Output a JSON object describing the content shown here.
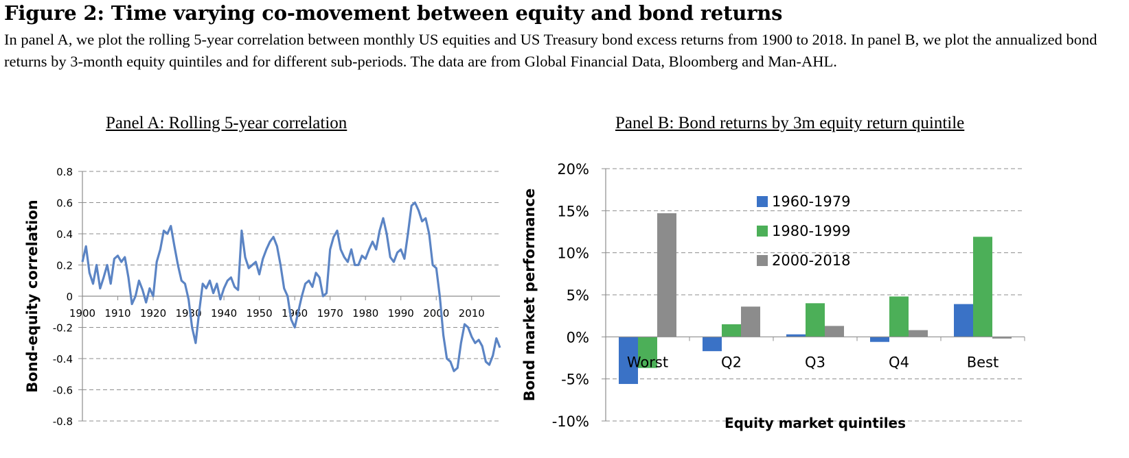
{
  "figure": {
    "title": "Figure 2: Time varying co-movement between equity and bond returns",
    "caption": "In panel A, we plot the rolling 5-year correlation between monthly US equities and US Treasury bond excess returns from 1900 to 2018. In panel B, we plot the annualized bond returns by 3-month equity quintiles and for different sub-periods. The data are from Global Financial Data, Bloomberg and Man-AHL."
  },
  "chart_data": [
    {
      "type": "line",
      "title": "Panel A: Rolling 5-year correlation",
      "xlabel": "",
      "ylabel": "Bond-equity correlation",
      "xlim": [
        1900,
        2018
      ],
      "ylim": [
        -0.8,
        0.8
      ],
      "xticks": [
        "1900",
        "1910",
        "1920",
        "1930",
        "1940",
        "1950",
        "1960",
        "1970",
        "1980",
        "1990",
        "2000",
        "2010"
      ],
      "yticks": [
        "0.8",
        "0.6",
        "0.4",
        "0.2",
        "0",
        "-0.2",
        "-0.4",
        "-0.6",
        "-0.8"
      ],
      "grid": "horizontal dashed",
      "color": "#5B84C4",
      "series": [
        {
          "x": [
            1900,
            1901,
            1902,
            1903,
            1904,
            1905,
            1906,
            1907,
            1908,
            1909,
            1910,
            1911,
            1912,
            1913,
            1914,
            1915,
            1916,
            1917,
            1918,
            1919,
            1920,
            1921,
            1922,
            1923,
            1924,
            1925,
            1926,
            1927,
            1928,
            1929,
            1930,
            1931,
            1932,
            1933,
            1934,
            1935,
            1936,
            1937,
            1938,
            1939,
            1940,
            1941,
            1942,
            1943,
            1944,
            1945,
            1946,
            1947,
            1948,
            1949,
            1950,
            1951,
            1952,
            1953,
            1954,
            1955,
            1956,
            1957,
            1958,
            1959,
            1960,
            1961,
            1962,
            1963,
            1964,
            1965,
            1966,
            1967,
            1968,
            1969,
            1970,
            1971,
            1972,
            1973,
            1974,
            1975,
            1976,
            1977,
            1978,
            1979,
            1980,
            1981,
            1982,
            1983,
            1984,
            1985,
            1986,
            1987,
            1988,
            1989,
            1990,
            1991,
            1992,
            1993,
            1994,
            1995,
            1996,
            1997,
            1998,
            1999,
            2000,
            2001,
            2002,
            2003,
            2004,
            2005,
            2006,
            2007,
            2008,
            2009,
            2010,
            2011,
            2012,
            2013,
            2014,
            2015,
            2016,
            2017,
            2018
          ],
          "values": [
            0.22,
            0.32,
            0.15,
            0.08,
            0.2,
            0.05,
            0.12,
            0.2,
            0.08,
            0.24,
            0.26,
            0.22,
            0.25,
            0.12,
            -0.05,
            0.0,
            0.1,
            0.04,
            -0.04,
            0.05,
            0.0,
            0.22,
            0.3,
            0.42,
            0.4,
            0.45,
            0.32,
            0.2,
            0.1,
            0.08,
            -0.02,
            -0.2,
            -0.3,
            -0.1,
            0.08,
            0.05,
            0.1,
            0.02,
            0.08,
            -0.02,
            0.05,
            0.1,
            0.12,
            0.06,
            0.04,
            0.42,
            0.25,
            0.18,
            0.2,
            0.22,
            0.14,
            0.24,
            0.3,
            0.35,
            0.38,
            0.32,
            0.2,
            0.05,
            0.0,
            -0.15,
            -0.2,
            -0.1,
            0.0,
            0.08,
            0.1,
            0.06,
            0.15,
            0.12,
            0.0,
            0.02,
            0.3,
            0.38,
            0.42,
            0.3,
            0.25,
            0.22,
            0.3,
            0.2,
            0.2,
            0.26,
            0.24,
            0.3,
            0.35,
            0.3,
            0.42,
            0.5,
            0.4,
            0.25,
            0.22,
            0.28,
            0.3,
            0.24,
            0.4,
            0.58,
            0.6,
            0.55,
            0.48,
            0.5,
            0.4,
            0.2,
            0.18,
            0.0,
            -0.25,
            -0.4,
            -0.42,
            -0.48,
            -0.46,
            -0.3,
            -0.18,
            -0.2,
            -0.26,
            -0.3,
            -0.28,
            -0.32,
            -0.42,
            -0.44,
            -0.38,
            -0.27,
            -0.33
          ]
        }
      ]
    },
    {
      "type": "bar",
      "title": "Panel B: Bond returns by 3m equity return quintile",
      "xlabel": "Equity market quintiles",
      "ylabel": "Bond market performance",
      "categories": [
        "Worst",
        "Q2",
        "Q3",
        "Q4",
        "Best"
      ],
      "ylim": [
        -10,
        20
      ],
      "yticks": [
        "20%",
        "15%",
        "10%",
        "5%",
        "0%",
        "-5%",
        "-10%"
      ],
      "grid": "horizontal dashed",
      "legend": "inside upper-center",
      "series": [
        {
          "name": "1960-1979",
          "color": "#3A72C6",
          "values": [
            -5.6,
            -1.7,
            0.3,
            -0.6,
            3.9
          ]
        },
        {
          "name": "1980-1999",
          "color": "#4CAF58",
          "values": [
            -3.7,
            1.5,
            4.0,
            4.8,
            11.9
          ]
        },
        {
          "name": "2000-2018",
          "color": "#8C8C8C",
          "values": [
            14.7,
            3.6,
            1.3,
            0.8,
            -0.2
          ]
        }
      ]
    }
  ]
}
